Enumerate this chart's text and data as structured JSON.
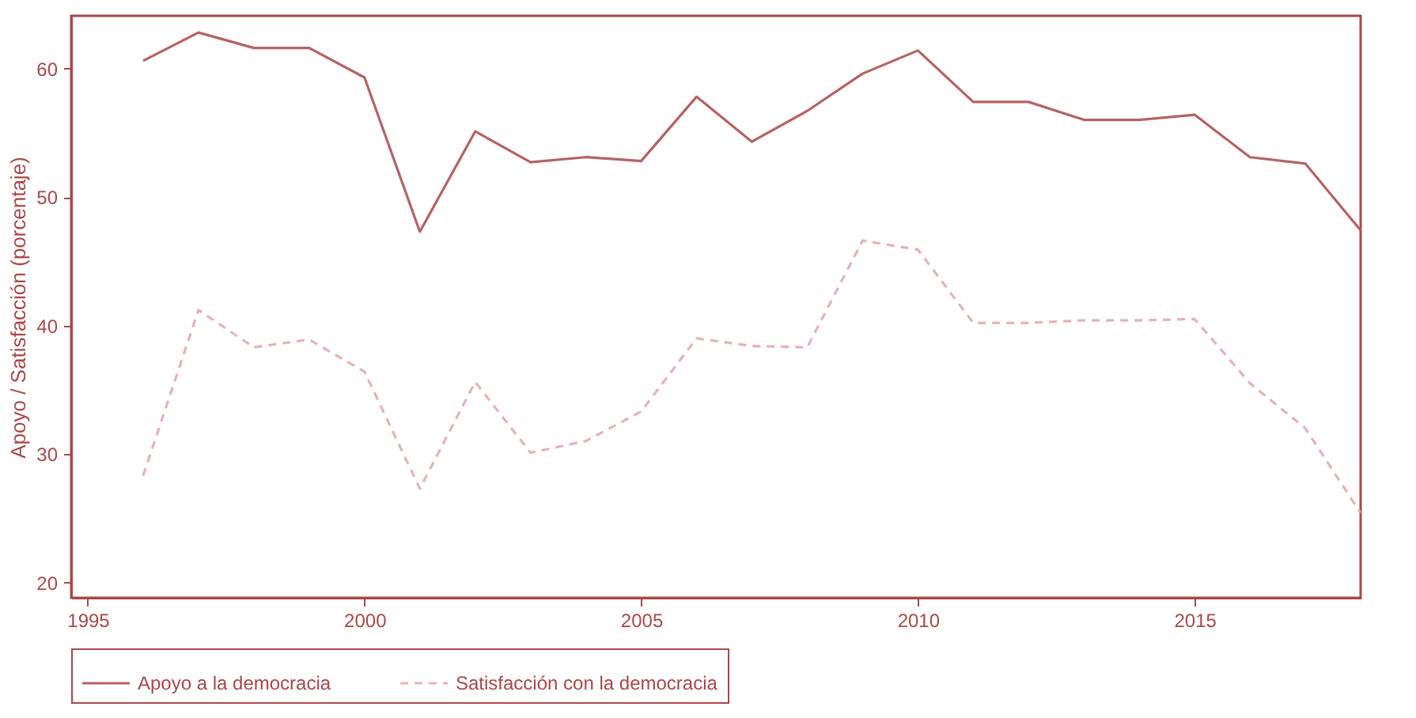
{
  "chart_data": {
    "type": "line",
    "ylabel": "Apoyo / Satisfacción (porcentaje)",
    "x": [
      1996,
      1997,
      1998,
      1999,
      2000,
      2001,
      2002,
      2003,
      2004,
      2005,
      2006,
      2007,
      2008,
      2009,
      2010,
      2011,
      2012,
      2013,
      2014,
      2015,
      2016,
      2017,
      2018
    ],
    "series": [
      {
        "name": "Apoyo a la democracia",
        "color": "#b56363",
        "line_style": "solid",
        "values": [
          60.6,
          62.8,
          61.6,
          61.6,
          59.3,
          47.3,
          55.1,
          52.7,
          53.1,
          52.8,
          57.8,
          54.3,
          56.7,
          59.6,
          61.4,
          57.4,
          57.4,
          56.0,
          56.0,
          56.4,
          53.1,
          52.6,
          47.4
        ]
      },
      {
        "name": "Satisfacción con la democracia",
        "color": "#e6b3b3",
        "line_style": "dashed",
        "values": [
          28.3,
          41.2,
          38.3,
          38.9,
          36.4,
          27.3,
          35.6,
          30.1,
          31.0,
          33.3,
          39.0,
          38.4,
          38.3,
          46.6,
          45.9,
          40.2,
          40.2,
          40.4,
          40.4,
          40.5,
          35.5,
          32.0,
          25.4
        ]
      }
    ],
    "xlim": [
      1994.7,
      2018
    ],
    "ylim": [
      18.8,
      64.1
    ],
    "xticks": [
      1995,
      2000,
      2005,
      2010,
      2015
    ],
    "yticks": [
      20,
      30,
      40,
      50,
      60
    ],
    "grid": false,
    "legend": "bottom",
    "marker": "none"
  }
}
